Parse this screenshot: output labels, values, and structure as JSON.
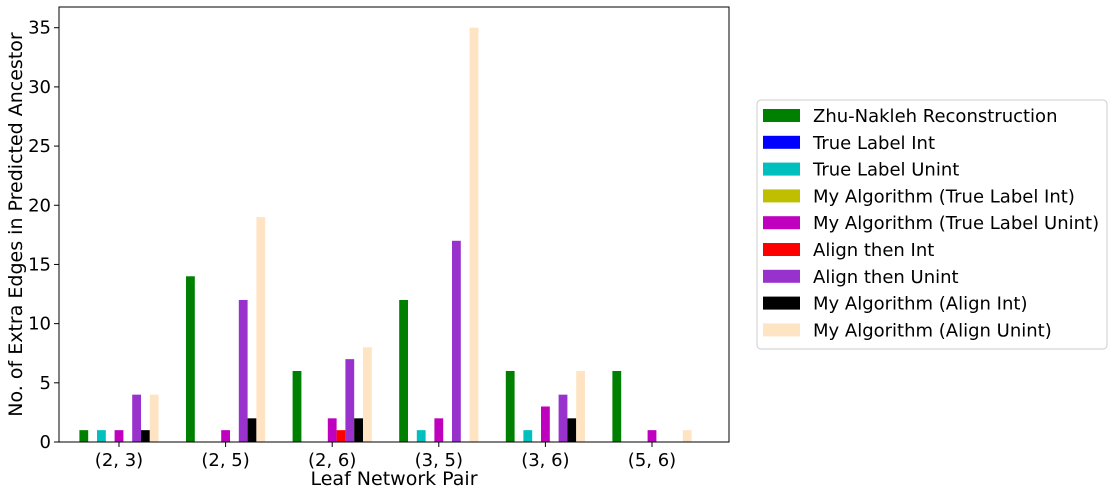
{
  "chart_data": {
    "type": "bar",
    "title": "",
    "xlabel": "Leaf Network Pair",
    "ylabel": "No. of Extra Edges in Predicted Ancestor",
    "ylim": [
      0,
      36.75
    ],
    "yticks": [
      0,
      5,
      10,
      15,
      20,
      25,
      30,
      35
    ],
    "categories": [
      "(2, 3)",
      "(2, 5)",
      "(2, 6)",
      "(3, 5)",
      "(3, 6)",
      "(5, 6)"
    ],
    "grid": false,
    "legend_position": "right",
    "series": [
      {
        "name": "Zhu-Nakleh Reconstruction",
        "color": "#008000",
        "values": [
          1,
          14,
          6,
          12,
          6,
          6
        ]
      },
      {
        "name": "True Label Int",
        "color": "#0000ff",
        "values": [
          0,
          0,
          0,
          0,
          0,
          0
        ]
      },
      {
        "name": "True Label Unint",
        "color": "#00bfbf",
        "values": [
          1,
          0,
          0,
          1,
          1,
          0
        ]
      },
      {
        "name": "My Algorithm (True Label Int)",
        "color": "#bfbf00",
        "values": [
          0,
          0,
          0,
          0,
          0,
          0
        ]
      },
      {
        "name": "My Algorithm (True Label Unint)",
        "color": "#bf00bf",
        "values": [
          1,
          1,
          2,
          2,
          3,
          1
        ]
      },
      {
        "name": "Align then Int",
        "color": "#ff0000",
        "values": [
          0,
          0,
          1,
          0,
          0,
          0
        ]
      },
      {
        "name": "Align then Unint",
        "color": "#9932cc",
        "values": [
          4,
          12,
          7,
          17,
          4,
          0
        ]
      },
      {
        "name": "My Algorithm (Align Int)",
        "color": "#000000",
        "values": [
          1,
          2,
          2,
          0,
          2,
          0
        ]
      },
      {
        "name": "My Algorithm (Align Unint)",
        "color": "#ffe4c4",
        "values": [
          4,
          19,
          8,
          35,
          6,
          1
        ]
      }
    ]
  }
}
